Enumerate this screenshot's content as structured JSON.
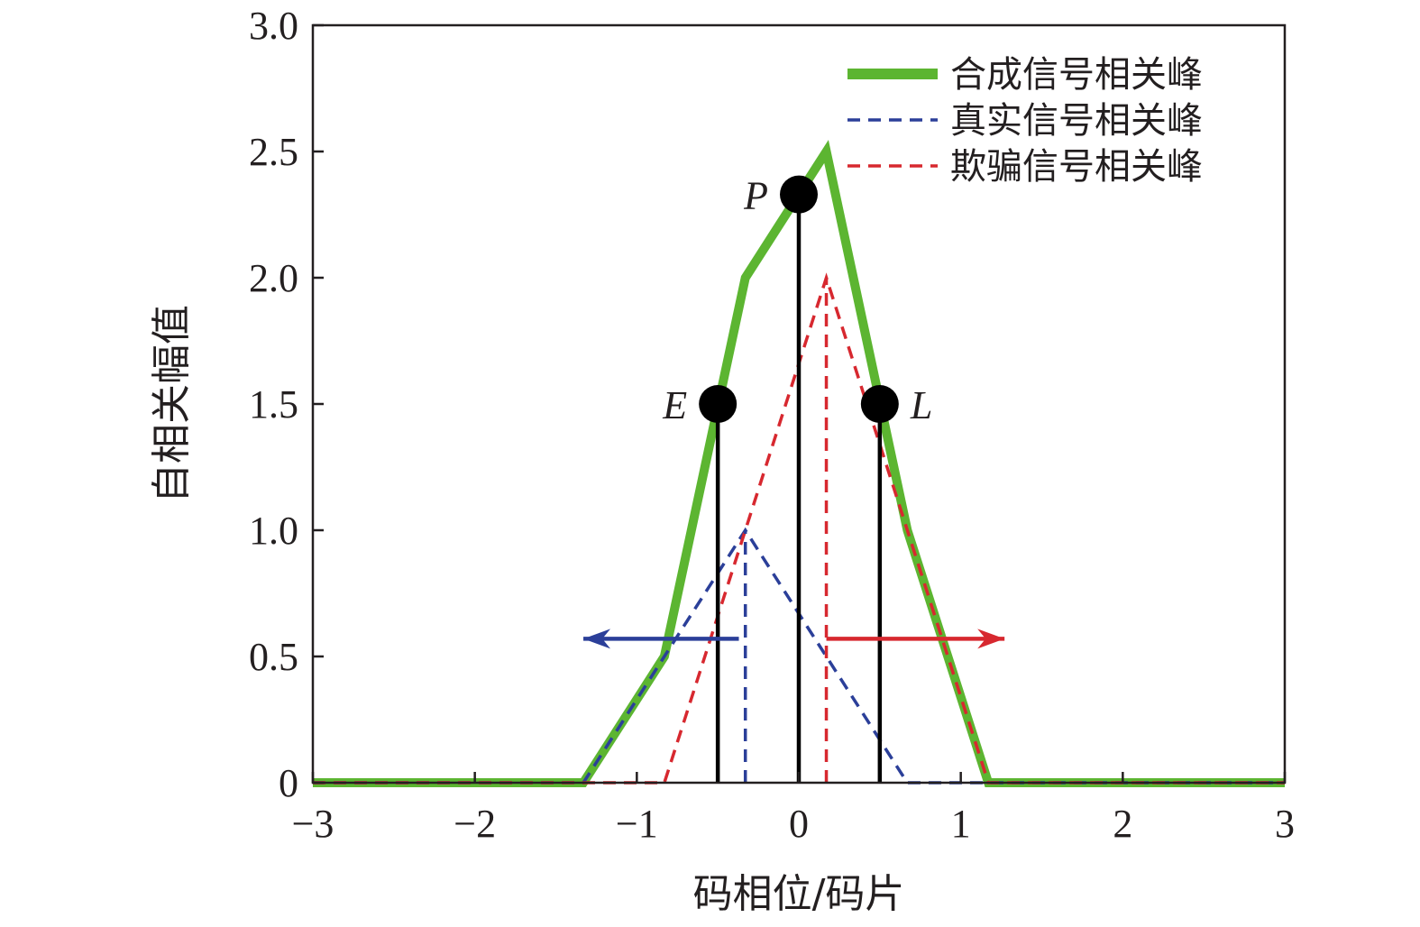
{
  "chart_data": {
    "type": "line",
    "xlabel": "码相位/码片",
    "ylabel": "自相关幅值",
    "xlim": [
      -3,
      3
    ],
    "ylim": [
      0,
      3
    ],
    "x_ticks": [
      {
        "value": -3,
        "label": "−3"
      },
      {
        "value": -2,
        "label": "−2"
      },
      {
        "value": -1,
        "label": "−1"
      },
      {
        "value": 0,
        "label": "0"
      },
      {
        "value": 1,
        "label": "1"
      },
      {
        "value": 2,
        "label": "2"
      },
      {
        "value": 3,
        "label": "3"
      }
    ],
    "y_ticks": [
      {
        "value": 0,
        "label": "0"
      },
      {
        "value": 0.5,
        "label": "0.5"
      },
      {
        "value": 1.0,
        "label": "1.0"
      },
      {
        "value": 1.5,
        "label": "1.5"
      },
      {
        "value": 2.0,
        "label": "2.0"
      },
      {
        "value": 2.5,
        "label": "2.5"
      },
      {
        "value": 3.0,
        "label": "3.0"
      }
    ],
    "grid": false,
    "legend_position": "top-right",
    "series": [
      {
        "name": "合成信号相关峰",
        "color": "#5cb531",
        "style": "solid",
        "x": [
          -3,
          -1.33,
          -0.83,
          -0.33,
          0.17,
          0.67,
          1.17,
          3
        ],
        "y": [
          0,
          0,
          0.5,
          2.0,
          2.5,
          1.0,
          0,
          0
        ]
      },
      {
        "name": "真实信号相关峰",
        "color": "#2b3f99",
        "style": "dashed",
        "x": [
          -3,
          -1.33,
          -0.33,
          0.67,
          3
        ],
        "y": [
          0,
          0,
          1.0,
          0,
          0
        ]
      },
      {
        "name": "欺骗信号相关峰",
        "color": "#d7282f",
        "style": "dashed",
        "x": [
          -3,
          -0.83,
          0.17,
          1.17,
          3
        ],
        "y": [
          0,
          0,
          2.0,
          0,
          0
        ]
      }
    ],
    "stems": [
      {
        "label": "E",
        "x": -0.5,
        "y": 1.5,
        "color": "#000000",
        "style": "solid",
        "marker": true
      },
      {
        "label": "P",
        "x": 0.0,
        "y": 2.33,
        "color": "#000000",
        "style": "solid",
        "marker": true
      },
      {
        "label": "L",
        "x": 0.5,
        "y": 1.5,
        "color": "#000000",
        "style": "solid",
        "marker": true
      },
      {
        "label": "",
        "x": -0.33,
        "y": 1.0,
        "color": "#2b3f99",
        "style": "dashed",
        "marker": false
      },
      {
        "label": "",
        "x": 0.17,
        "y": 2.0,
        "color": "#d7282f",
        "style": "dashed",
        "marker": false
      }
    ],
    "arrows": [
      {
        "color": "#2b3f99",
        "y": 0.57,
        "x_from": -0.37,
        "x_to": -1.33
      },
      {
        "color": "#d7282f",
        "y": 0.57,
        "x_from": 0.17,
        "x_to": 1.27
      }
    ]
  }
}
